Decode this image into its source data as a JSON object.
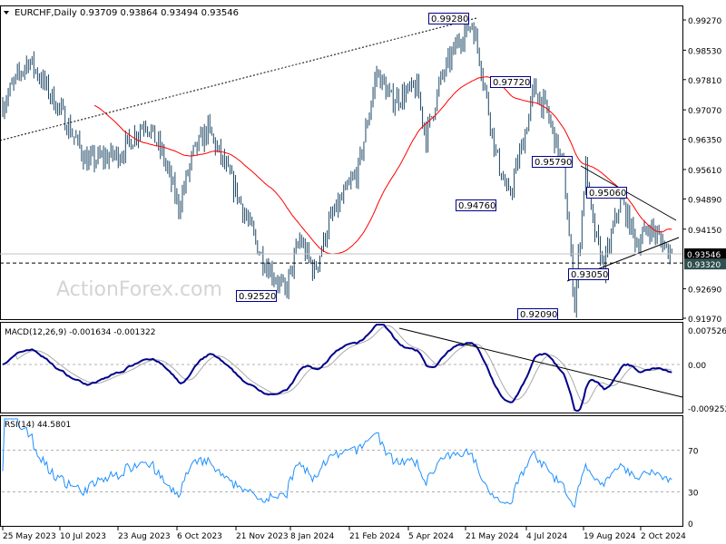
{
  "header": {
    "symbol_label": "EURCHF,Daily",
    "ohlc": "0.93709 0.93864 0.93494 0.93546",
    "collapse_icon": "triangle-down-icon"
  },
  "watermark": "ActionForex.com",
  "colors": {
    "bars": "#1e4866",
    "moving_average": "#ff0000",
    "macd_line": "#00008b",
    "macd_signal": "#a9a9a9",
    "rsi_line": "#1e90ff",
    "label_border": "#00008b",
    "current_price_bg": "#000000",
    "level_bg": "#2f4f4f"
  },
  "chart_data": [
    {
      "type": "candlestick",
      "title": "EURCHF,Daily",
      "ylim": [
        0.9197,
        0.9927
      ],
      "y_ticks": [
        "0.99270",
        "0.98530",
        "0.97810",
        "0.97070",
        "0.96350",
        "0.95610",
        "0.94890",
        "0.94150",
        "0.92690",
        "0.91970"
      ],
      "current_price": "0.93546",
      "horizontal_level": "0.93320",
      "price_path": [
        [
          "2023-05-25",
          0.972
        ],
        [
          "2023-06-02",
          0.977
        ],
        [
          "2023-06-14",
          0.983
        ],
        [
          "2023-06-22",
          0.979
        ],
        [
          "2023-07-10",
          0.97
        ],
        [
          "2023-07-28",
          0.958
        ],
        [
          "2023-08-23",
          0.96
        ],
        [
          "2023-09-12",
          0.968
        ],
        [
          "2023-09-25",
          0.96
        ],
        [
          "2023-10-06",
          0.947
        ],
        [
          "2023-10-18",
          0.96
        ],
        [
          "2023-10-30",
          0.966
        ],
        [
          "2023-11-21",
          0.95
        ],
        [
          "2023-12-08",
          0.935
        ],
        [
          "2023-12-27",
          0.926
        ],
        [
          "2024-01-08",
          0.939
        ],
        [
          "2024-01-18",
          0.931
        ],
        [
          "2024-01-30",
          0.943
        ],
        [
          "2024-02-21",
          0.956
        ],
        [
          "2024-03-06",
          0.98
        ],
        [
          "2024-03-18",
          0.973
        ],
        [
          "2024-04-05",
          0.976
        ],
        [
          "2024-04-12",
          0.964
        ],
        [
          "2024-04-24",
          0.978
        ],
        [
          "2024-05-08",
          0.988
        ],
        [
          "2024-05-17",
          0.992
        ],
        [
          "2024-05-23",
          0.984
        ],
        [
          "2024-06-05",
          0.96
        ],
        [
          "2024-06-14",
          0.949
        ],
        [
          "2024-06-27",
          0.965
        ],
        [
          "2024-07-04",
          0.976
        ],
        [
          "2024-07-15",
          0.97
        ],
        [
          "2024-07-26",
          0.956
        ],
        [
          "2024-08-05",
          0.923
        ],
        [
          "2024-08-13",
          0.957
        ],
        [
          "2024-08-19",
          0.942
        ],
        [
          "2024-08-27",
          0.932
        ],
        [
          "2024-09-09",
          0.949
        ],
        [
          "2024-09-20",
          0.938
        ],
        [
          "2024-10-01",
          0.942
        ],
        [
          "2024-10-17",
          0.93546
        ]
      ],
      "moving_average": "red",
      "annotations": [
        "0.99280",
        "0.97720",
        "0.94760",
        "0.95790",
        "0.95060",
        "0.93050",
        "0.92520",
        "0.92090"
      ],
      "x_tick_labels": [
        "25 May 2023",
        "10 Jul 2023",
        "23 Aug 2023",
        "6 Oct 2023",
        "21 Nov 2023",
        "8 Jan 2024",
        "21 Feb 2024",
        "5 Apr 2024",
        "21 May 2024",
        "4 Jul 2024",
        "19 Aug 2024",
        "2 Oct 2024"
      ]
    },
    {
      "type": "line",
      "title": "MACD(12,26,9) -0.001634 -0.001322",
      "ylim": [
        -0.009252,
        0.007526
      ],
      "y_ticks": [
        "0.007526",
        "0.00",
        "-0.009252"
      ]
    },
    {
      "type": "line",
      "title": "RSI(14) 44.5801",
      "ylim": [
        0,
        100
      ],
      "y_ticks": [
        "100",
        "70",
        "30",
        "0"
      ],
      "levels": [
        70,
        30
      ]
    }
  ]
}
